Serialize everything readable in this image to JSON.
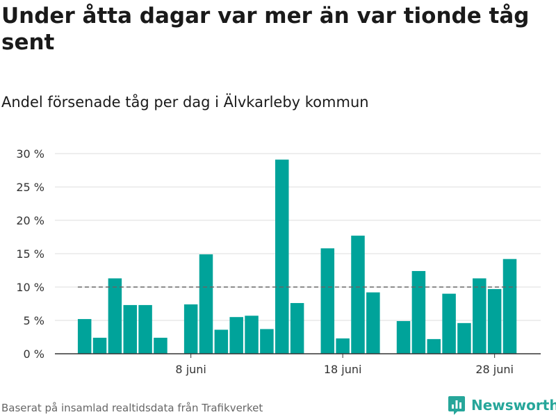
{
  "title": "Under åtta dagar var mer än var tionde tåg sent",
  "subtitle": "Andel försenade tåg per dag i Älvkarleby kommun",
  "footer": {
    "source": "Baserat på insamlad realtidsdata från Trafikverket",
    "brand": "Newsworthy"
  },
  "colors": {
    "bar": "#00a39a",
    "reference_line": "#666666",
    "grid": "#dddddd",
    "brand": "#26a69a"
  },
  "brand_icon": "bar-chart-icon",
  "chart_data": {
    "type": "bar",
    "x": [
      "1 juni",
      "2 juni",
      "3 juni",
      "4 juni",
      "5 juni",
      "6 juni",
      "7 juni",
      "8 juni",
      "9 juni",
      "10 juni",
      "11 juni",
      "12 juni",
      "13 juni",
      "14 juni",
      "15 juni",
      "16 juni",
      "17 juni",
      "18 juni",
      "19 juni",
      "20 juni",
      "21 juni",
      "22 juni",
      "23 juni",
      "24 juni",
      "25 juni",
      "26 juni",
      "27 juni",
      "28 juni",
      "29 juni",
      "30 juni"
    ],
    "values": [
      5.2,
      2.4,
      11.3,
      7.3,
      7.3,
      2.4,
      null,
      7.4,
      14.9,
      3.6,
      5.5,
      5.7,
      3.7,
      29.1,
      7.6,
      null,
      15.8,
      2.3,
      17.7,
      9.2,
      null,
      4.9,
      12.4,
      2.2,
      9.0,
      4.6,
      11.3,
      9.7,
      14.2,
      null
    ],
    "xticks": [
      "8 juni",
      "18 juni",
      "28 juni"
    ],
    "yticks": [
      "0 %",
      "5 %",
      "10 %",
      "15 %",
      "20 %",
      "25 %",
      "30 %"
    ],
    "ylim": [
      0,
      30
    ],
    "reference_line": 10,
    "grid": true
  }
}
